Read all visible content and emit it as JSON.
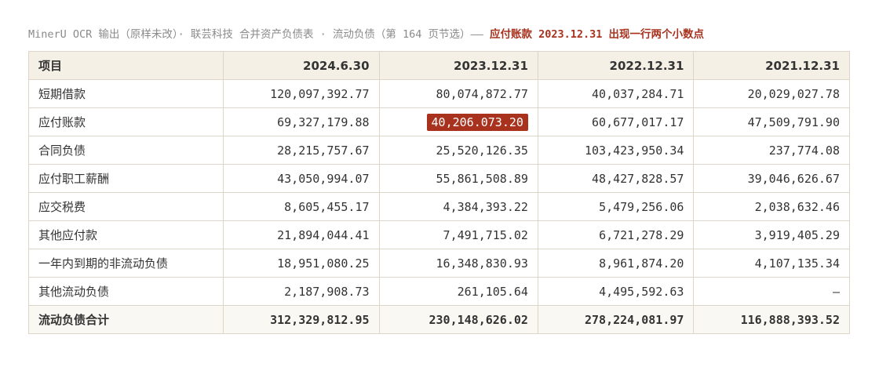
{
  "caption": {
    "text": "MinerU OCR 输出（原样未改）· 联芸科技 合并资产负债表 · 流动负债（第 164 页节选）—— ",
    "highlight": "应付账款 2023.12.31 出现一行两个小数点"
  },
  "table": {
    "header": [
      "项目",
      "2024.6.30",
      "2023.12.31",
      "2022.12.31",
      "2021.12.31"
    ],
    "rows": [
      [
        "短期借款",
        "120,097,392.77",
        "80,074,872.77",
        "40,037,284.71",
        "20,029,027.78"
      ],
      [
        "应付账款",
        "69,327,179.88",
        "40,206.073.20",
        "60,677,017.17",
        "47,509,791.90"
      ],
      [
        "合同负债",
        "28,215,757.67",
        "25,520,126.35",
        "103,423,950.34",
        "237,774.08"
      ],
      [
        "应付职工薪酬",
        "43,050,994.07",
        "55,861,508.89",
        "48,427,828.57",
        "39,046,626.67"
      ],
      [
        "应交税费",
        "8,605,455.17",
        "4,384,393.22",
        "5,479,256.06",
        "2,038,632.46"
      ],
      [
        "其他应付款",
        "21,894,044.41",
        "7,491,715.02",
        "6,721,278.29",
        "3,919,405.29"
      ],
      [
        "一年内到期的非流动负债",
        "18,951,080.25",
        "16,348,830.93",
        "8,961,874.20",
        "4,107,135.34"
      ],
      [
        "其他流动负债",
        "2,187,908.73",
        "261,105.64",
        "4,495,592.63",
        "—"
      ],
      [
        "流动负债合计",
        "312,329,812.95",
        "230,148,626.02",
        "278,224,081.97",
        "116,888,393.52"
      ]
    ]
  }
}
